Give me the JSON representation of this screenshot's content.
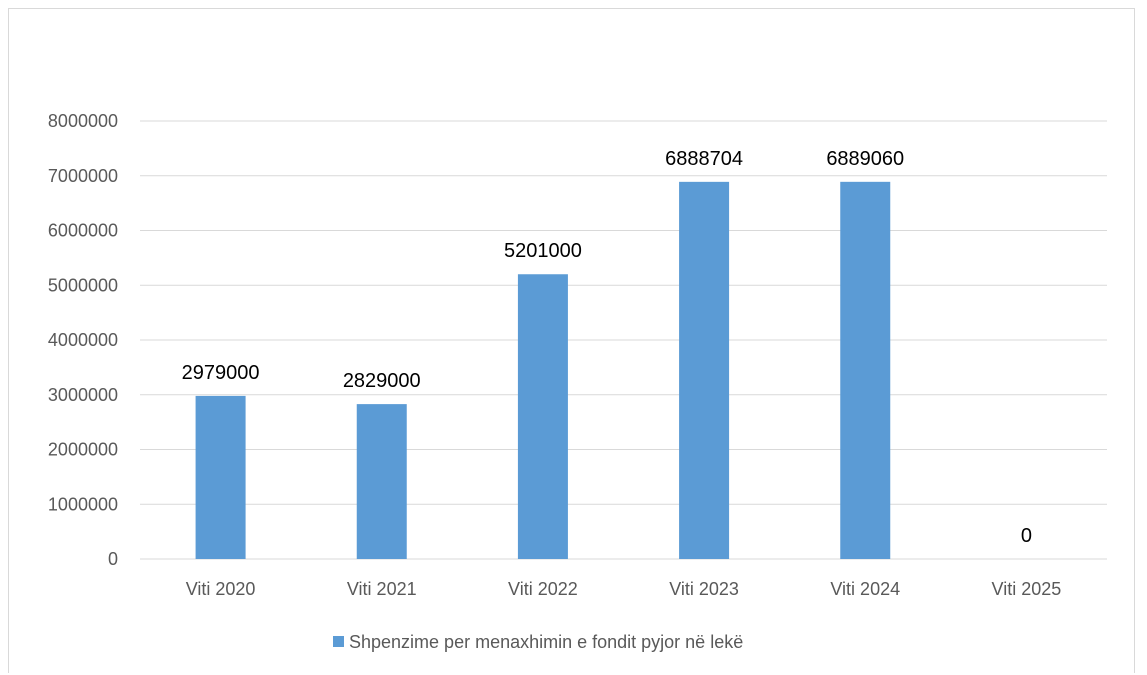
{
  "chart_data": {
    "type": "bar",
    "categories": [
      "Viti 2020",
      "Viti 2021",
      "Viti 2022",
      "Viti 2023",
      "Viti 2024",
      "Viti 2025"
    ],
    "series": [
      {
        "name": "Shpenzime per menaxhimin e fondit pyjor në lekë",
        "values": [
          2979000,
          2829000,
          5201000,
          6888704,
          6889060,
          0
        ],
        "data_labels": [
          "2979000",
          "2829000",
          "5201000",
          "6888704",
          "6889060",
          "0"
        ],
        "color": "#5b9bd5"
      }
    ],
    "title": "",
    "xlabel": "",
    "ylabel": "",
    "ylim": [
      0,
      8000000
    ],
    "yticks": [
      0,
      1000000,
      2000000,
      3000000,
      4000000,
      5000000,
      6000000,
      7000000,
      8000000
    ],
    "ytick_labels": [
      "0",
      "1000000",
      "2000000",
      "3000000",
      "4000000",
      "5000000",
      "6000000",
      "7000000",
      "8000000"
    ],
    "grid": true,
    "legend_position": "bottom",
    "gridline_color": "#d9d9d9",
    "axis_label_color": "#595959"
  }
}
